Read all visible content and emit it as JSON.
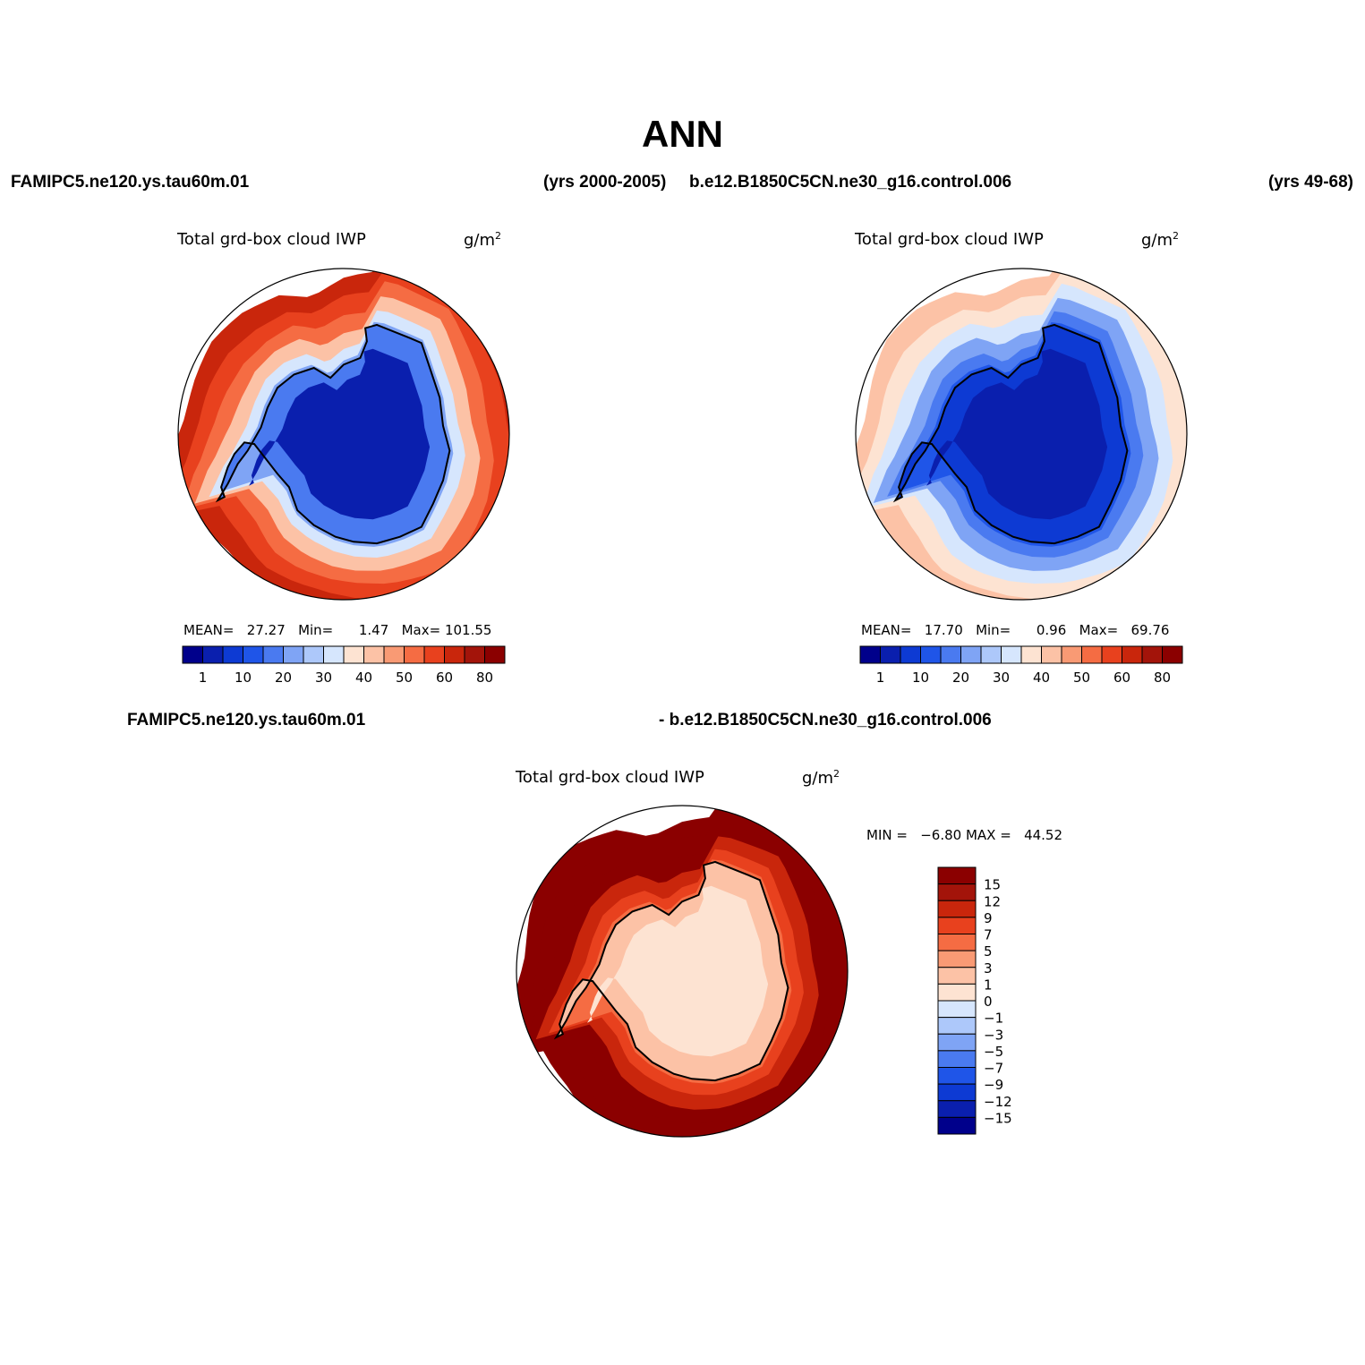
{
  "header": {
    "title": "ANN",
    "case1_name": "FAMIPC5.ne120.ys.tau60m.01",
    "case1_years": "(yrs 2000-2005)",
    "case2_name": "b.e12.B1850C5CN.ne30_g16.control.006",
    "case2_years": "(yrs 49-68)",
    "diff_case1": "FAMIPC5.ne120.ys.tau60m.01",
    "diff_case2": "- b.e12.B1850C5CN.ne30_g16.control.006"
  },
  "colors": {
    "seq": [
      "#00008b",
      "#0a1fae",
      "#0d3ad3",
      "#1f55e8",
      "#4a7af0",
      "#7fa4f5",
      "#adc8fa",
      "#d6e6fd",
      "#fde3d2",
      "#fcc2a6",
      "#f99a74",
      "#f56c43",
      "#e8411e",
      "#c9260c",
      "#a3140a",
      "#8b0000"
    ],
    "coast": "#000000"
  },
  "chart_data": [
    {
      "type": "heatmap",
      "projection": "south-polar-stereographic",
      "title": "Total grd-box cloud IWP",
      "units": "g/m",
      "units_sup": "2",
      "stats": {
        "mean_label": "MEAN=",
        "mean": "27.27",
        "min_label": "Min=",
        "min": "1.47",
        "max_label": "Max=",
        "max": "101.55"
      },
      "colorbar_ticks": [
        "1",
        "10",
        "20",
        "30",
        "40",
        "50",
        "60",
        "80"
      ],
      "levels": [
        1,
        5,
        10,
        15,
        20,
        25,
        30,
        35,
        40,
        45,
        50,
        55,
        60,
        70,
        80
      ],
      "field": {
        "pole": 1,
        "coast": 4,
        "r1": 5,
        "r2": 7,
        "r3": 9,
        "r4": 11,
        "r5": 12,
        "r6": 13,
        "amp": 3
      }
    },
    {
      "type": "heatmap",
      "projection": "south-polar-stereographic",
      "title": "Total grd-box cloud IWP",
      "units": "g/m",
      "units_sup": "2",
      "stats": {
        "mean_label": "MEAN=",
        "mean": "17.70",
        "min_label": "Min=",
        "min": "0.96",
        "max_label": "Max=",
        "max": "69.76"
      },
      "colorbar_ticks": [
        "1",
        "10",
        "20",
        "30",
        "40",
        "50",
        "60",
        "80"
      ],
      "levels": [
        1,
        5,
        10,
        15,
        20,
        25,
        30,
        35,
        40,
        45,
        50,
        55,
        60,
        70,
        80
      ],
      "field": {
        "pole": 1,
        "coast": 2,
        "r1": 3,
        "r2": 4,
        "r3": 5,
        "r4": 7,
        "r5": 8,
        "r6": 9,
        "amp": 2
      }
    },
    {
      "type": "heatmap",
      "projection": "south-polar-stereographic",
      "title": "Total grd-box cloud IWP",
      "units": "g/m",
      "units_sup": "2",
      "stats_text": "MIN =   −6.80 MAX =   44.52",
      "colorbar_ticks": [
        "15",
        "12",
        "9",
        "7",
        "5",
        "3",
        "1",
        "0",
        "−1",
        "−3",
        "−5",
        "−7",
        "−9",
        "−12",
        "−15"
      ],
      "levels": [
        -15,
        -12,
        -9,
        -7,
        -5,
        -3,
        -1,
        0,
        1,
        3,
        5,
        7,
        9,
        12,
        15
      ],
      "field": {
        "pole": 8,
        "coast": 9,
        "r1": 11,
        "r2": 12,
        "r3": 13,
        "r4": 15,
        "r5": 15,
        "r6": 15,
        "amp": 2
      }
    }
  ]
}
